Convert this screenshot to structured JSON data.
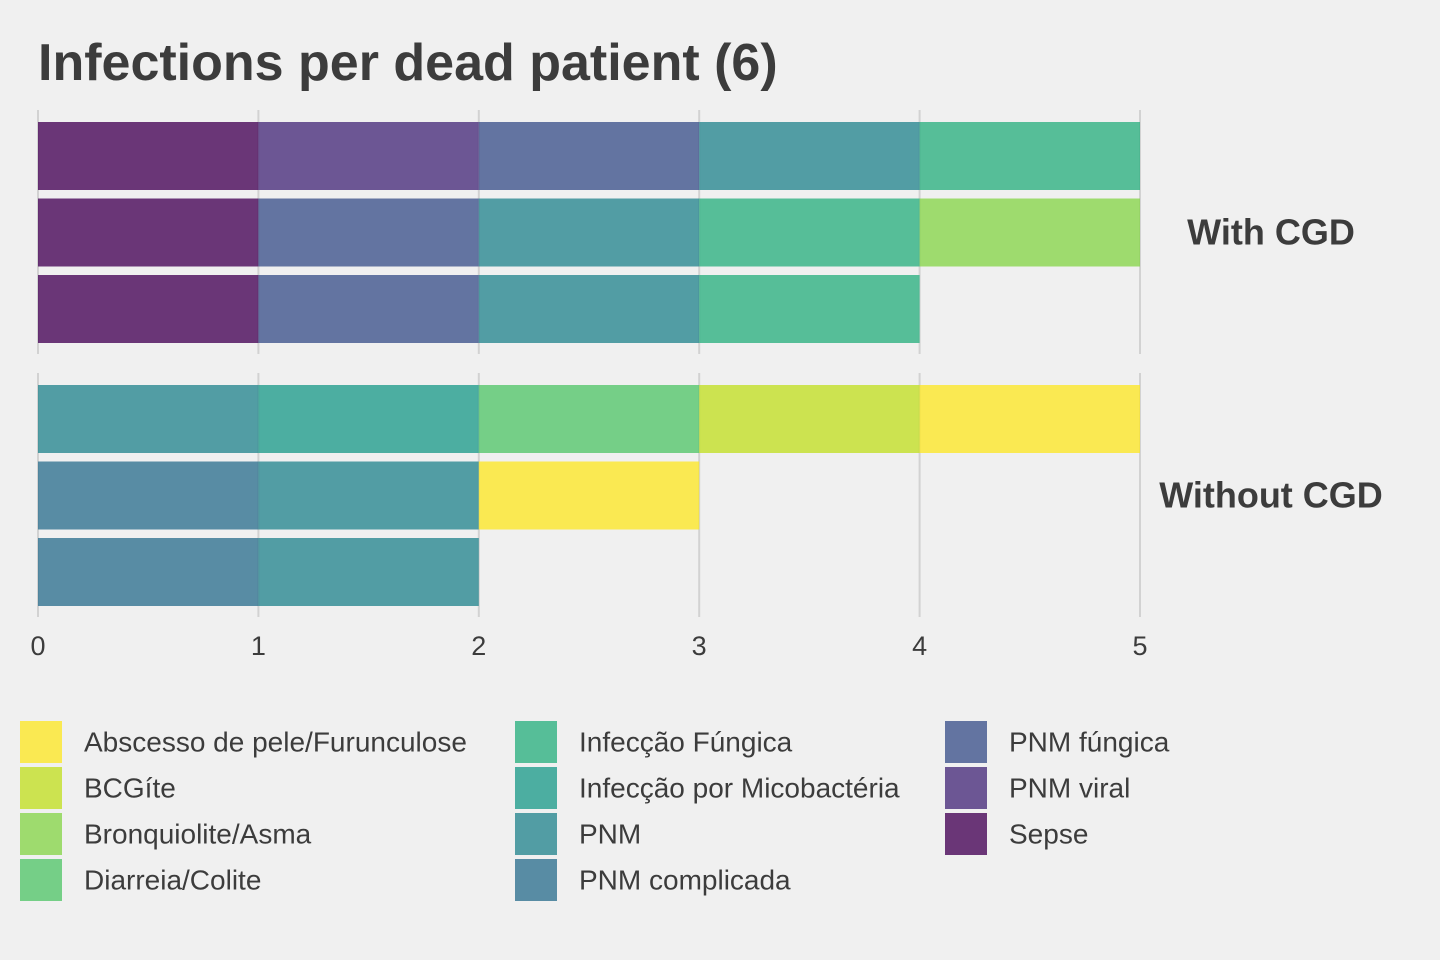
{
  "chart_data": {
    "type": "bar",
    "orientation": "horizontal",
    "stacked": true,
    "title": "Infections per dead patient (6)",
    "xlim": [
      0,
      5
    ],
    "x_ticks": [
      0,
      1,
      2,
      3,
      4,
      5
    ],
    "grid": true,
    "legend_position": "bottom",
    "categories": [
      {
        "name": "Abscesso de pele/Furunculose",
        "color": "#fde725"
      },
      {
        "name": "BCGíte",
        "color": "#c2df23"
      },
      {
        "name": "Bronquiolite/Asma",
        "color": "#86d549"
      },
      {
        "name": "Diarreia/Colite",
        "color": "#52c569"
      },
      {
        "name": "Infecção Fúngica",
        "color": "#2ab07f"
      },
      {
        "name": "Infecção por Micobactéria",
        "color": "#1e9b8a"
      },
      {
        "name": "PNM",
        "color": "#25858e"
      },
      {
        "name": "PNM complicada",
        "color": "#2d708e"
      },
      {
        "name": "PNM fúngica",
        "color": "#3b518b"
      },
      {
        "name": "PNM viral",
        "color": "#472a7a"
      },
      {
        "name": "Sepse",
        "color": "#440154"
      }
    ],
    "facets": [
      {
        "label": "With CGD",
        "patients": [
          [
            "Sepse",
            "PNM viral",
            "PNM fúngica",
            "PNM",
            "Infecção Fúngica"
          ],
          [
            "Sepse",
            "PNM fúngica",
            "PNM",
            "Infecção Fúngica",
            "Bronquiolite/Asma"
          ],
          [
            "Sepse",
            "PNM fúngica",
            "PNM",
            "Infecção Fúngica"
          ]
        ]
      },
      {
        "label": "Without CGD",
        "patients": [
          [
            "PNM",
            "Infecção por Micobactéria",
            "Diarreia/Colite",
            "BCGíte",
            "Abscesso de pele/Furunculose"
          ],
          [
            "PNM complicada",
            "PNM",
            "Abscesso de pele/Furunculose"
          ],
          [
            "PNM complicada",
            "PNM"
          ]
        ]
      }
    ]
  }
}
